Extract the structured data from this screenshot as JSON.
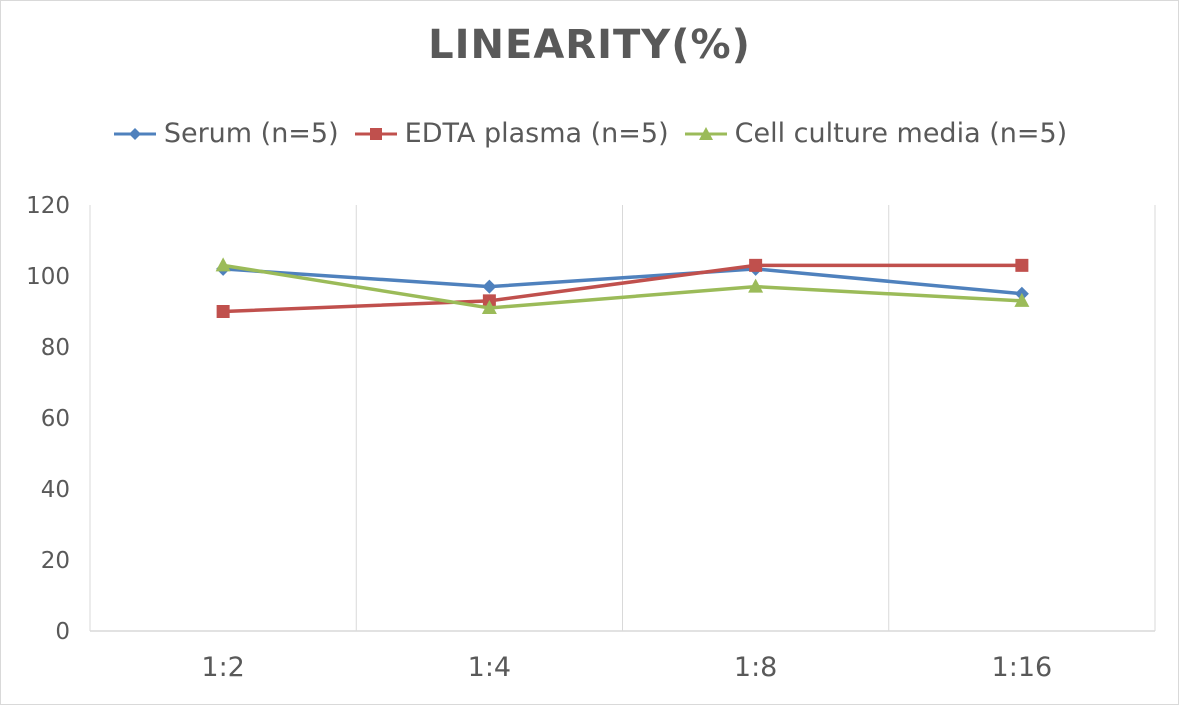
{
  "chart_data": {
    "type": "line",
    "title": "LINEARITY(%)",
    "xlabel": "",
    "ylabel": "",
    "categories": [
      "1:2",
      "1:4",
      "1:8",
      "1:16"
    ],
    "ylim": [
      0,
      120
    ],
    "yticks": [
      0,
      20,
      40,
      60,
      80,
      100,
      120
    ],
    "grid": "vertical",
    "legend_position": "top",
    "series": [
      {
        "name": "Serum (n=5)",
        "values": [
          102,
          97,
          102,
          95
        ],
        "color": "#4f81bd",
        "marker": "diamond"
      },
      {
        "name": "EDTA plasma (n=5)",
        "values": [
          90,
          93,
          103,
          103
        ],
        "color": "#c0504d",
        "marker": "square"
      },
      {
        "name": "Cell culture media (n=5)",
        "values": [
          103,
          91,
          97,
          93
        ],
        "color": "#9bbb59",
        "marker": "triangle"
      }
    ]
  }
}
